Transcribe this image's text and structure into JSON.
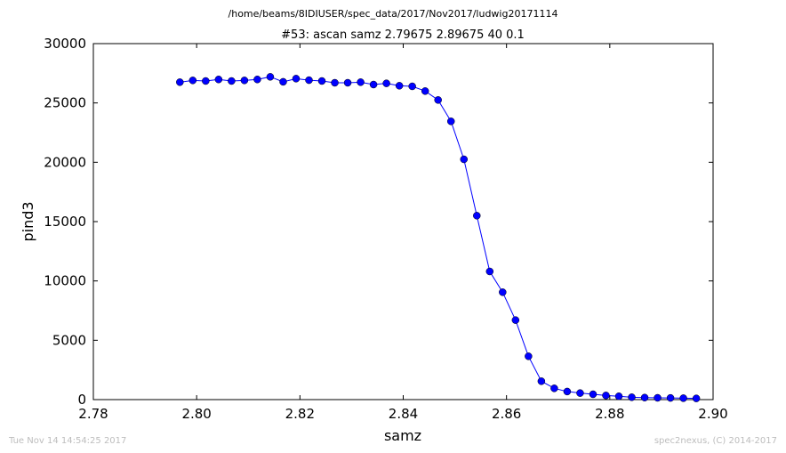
{
  "figure": {
    "suptitle": "/home/beams/8IDIUSER/spec_data/2017/Nov2017/ludwig20171114",
    "footer_left": "Tue Nov 14 14:54:25 2017",
    "footer_right": "spec2nexus, (C) 2014-2017"
  },
  "chart_data": {
    "type": "line",
    "title": "#53: ascan  samz 2.79675 2.89675  40 0.1",
    "xlabel": "samz",
    "ylabel": "pind3",
    "xlim": [
      2.78,
      2.9
    ],
    "ylim": [
      0,
      30000
    ],
    "xticks": [
      2.78,
      2.8,
      2.82,
      2.84,
      2.86,
      2.88,
      2.9
    ],
    "xtick_labels": [
      "2.78",
      "2.80",
      "2.82",
      "2.84",
      "2.86",
      "2.88",
      "2.90"
    ],
    "yticks": [
      0,
      5000,
      10000,
      15000,
      20000,
      25000,
      30000
    ],
    "ytick_labels": [
      "0",
      "5000",
      "10000",
      "15000",
      "20000",
      "25000",
      "30000"
    ],
    "grid": false,
    "legend": "none",
    "series": [
      {
        "color": "#0000ff",
        "marker": "circle",
        "x": [
          2.79675,
          2.79925,
          2.80175,
          2.80425,
          2.80675,
          2.80925,
          2.81175,
          2.81425,
          2.81675,
          2.81925,
          2.82175,
          2.82425,
          2.82675,
          2.82925,
          2.83175,
          2.83425,
          2.83675,
          2.83925,
          2.84175,
          2.84425,
          2.84675,
          2.84925,
          2.85175,
          2.85425,
          2.85675,
          2.85925,
          2.86175,
          2.86425,
          2.86675,
          2.86925,
          2.87175,
          2.87425,
          2.87675,
          2.87925,
          2.88175,
          2.88425,
          2.88675,
          2.88925,
          2.89175,
          2.89425,
          2.89675
        ],
        "y": [
          26750,
          26900,
          26850,
          26980,
          26850,
          26900,
          26980,
          27200,
          26780,
          27050,
          26920,
          26850,
          26700,
          26700,
          26750,
          26550,
          26650,
          26450,
          26400,
          26000,
          25250,
          23450,
          20250,
          15500,
          10800,
          9050,
          6700,
          3650,
          1550,
          950,
          680,
          550,
          450,
          350,
          280,
          200,
          170,
          150,
          140,
          120,
          100
        ]
      }
    ]
  }
}
